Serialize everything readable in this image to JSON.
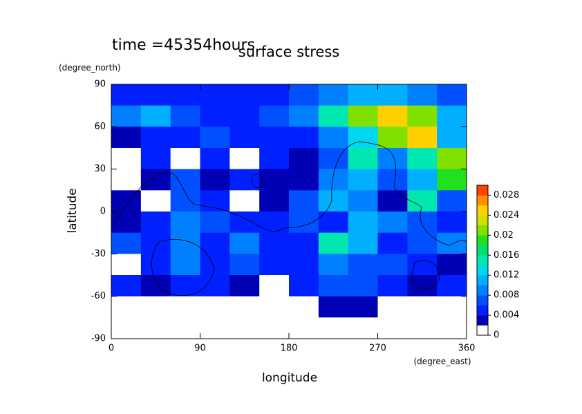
{
  "chart_data": {
    "type": "heatmap",
    "title": "surface stress",
    "subtitle": "time =45354hours",
    "x_label": "longitude",
    "x_units": "(degree_east)",
    "y_label": "latitude",
    "y_units": "(degree_north)",
    "x": [
      15,
      45,
      75,
      105,
      135,
      165,
      195,
      225,
      255,
      285,
      315,
      345
    ],
    "y": [
      82.5,
      67.5,
      52.5,
      37.5,
      22.5,
      7.5,
      -7.5,
      -22.5,
      -37.5,
      -52.5,
      -67.5,
      -82.5
    ],
    "values": [
      [
        0.004,
        0.004,
        0.004,
        0.005,
        0.005,
        0.005,
        0.006,
        0.008,
        0.01,
        0.01,
        0.008,
        0.006
      ],
      [
        0.008,
        0.01,
        0.006,
        0.005,
        0.004,
        0.006,
        0.008,
        0.014,
        0.02,
        0.024,
        0.02,
        0.01
      ],
      [
        0.003,
        0.005,
        0.004,
        0.006,
        0.005,
        0.004,
        0.005,
        0.008,
        0.012,
        0.02,
        0.024,
        0.01
      ],
      [
        0.001,
        0.004,
        0.001,
        0.004,
        0.001,
        0.004,
        0.003,
        0.006,
        0.014,
        0.008,
        0.014,
        0.02
      ],
      [
        0.001,
        0.003,
        0.006,
        0.003,
        0.004,
        0.003,
        0.002,
        0.008,
        0.01,
        0.006,
        0.01,
        0.018
      ],
      [
        0.003,
        0.001,
        0.006,
        0.004,
        0.001,
        0.003,
        0.006,
        0.01,
        0.008,
        0.003,
        0.014,
        0.006
      ],
      [
        0.002,
        0.004,
        0.008,
        0.006,
        0.004,
        0.004,
        0.006,
        0.004,
        0.01,
        0.008,
        0.006,
        0.004
      ],
      [
        0.006,
        0.004,
        0.008,
        0.004,
        0.008,
        0.004,
        0.004,
        0.014,
        0.01,
        0.004,
        0.006,
        0.008
      ],
      [
        0.001,
        0.004,
        0.008,
        0.004,
        0.006,
        0.005,
        0.004,
        0.008,
        0.006,
        0.006,
        0.004,
        0.002
      ],
      [
        0.004,
        0.003,
        0.004,
        0.004,
        0.003,
        0.001,
        0.004,
        0.006,
        0.006,
        0.004,
        0.003,
        0.004
      ],
      [
        0.001,
        0.001,
        0.001,
        0.001,
        0.001,
        0.001,
        0.001,
        0.003,
        0.003,
        0.001,
        0.001,
        0.001
      ],
      [
        0,
        0,
        0,
        0,
        0,
        0,
        0,
        0,
        0,
        0,
        0,
        0
      ]
    ],
    "xlim": [
      0,
      360
    ],
    "xticks": [
      0,
      90,
      180,
      270,
      360
    ],
    "ylim": [
      -90,
      90
    ],
    "yticks": [
      -90,
      -60,
      -30,
      0,
      30,
      60,
      90
    ],
    "levels": [
      0,
      0.002,
      0.004,
      0.006,
      0.008,
      0.01,
      0.012,
      0.014,
      0.016,
      0.018,
      0.02,
      0.022,
      0.024,
      0.026,
      0.028,
      0.03
    ],
    "colors": [
      "#ffffff",
      "#0000b4",
      "#0020ff",
      "#0050ff",
      "#0080ff",
      "#00b0ff",
      "#00d8f0",
      "#00e8b0",
      "#00e070",
      "#20e020",
      "#80e000",
      "#d0e000",
      "#ffd000",
      "#ff9000",
      "#ff4000"
    ],
    "colorbar_ticks": [
      0,
      0.004,
      0.008,
      0.012,
      0.016,
      0.02,
      0.024,
      0.028
    ]
  }
}
